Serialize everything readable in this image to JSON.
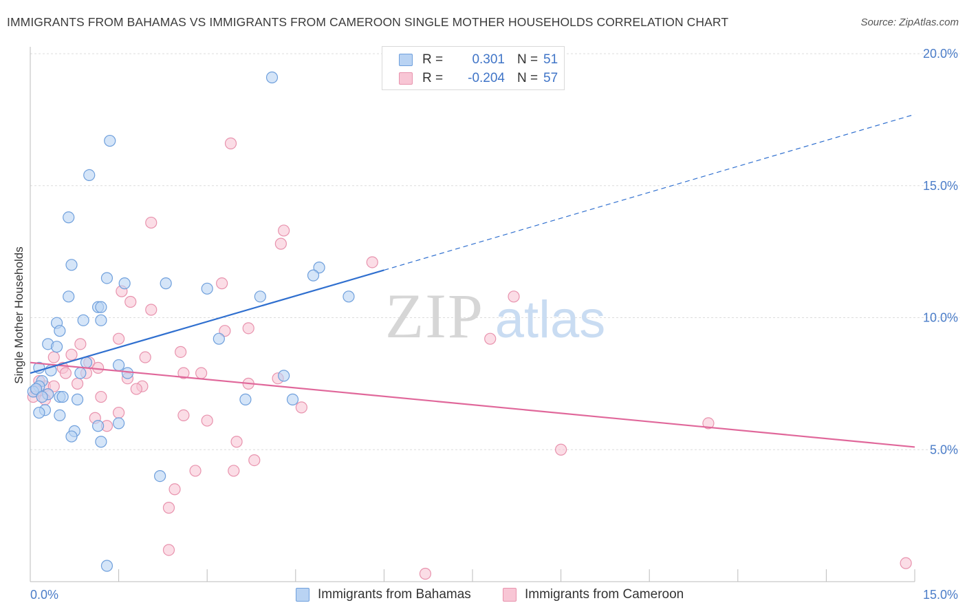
{
  "title": "IMMIGRANTS FROM BAHAMAS VS IMMIGRANTS FROM CAMEROON SINGLE MOTHER HOUSEHOLDS CORRELATION CHART",
  "source": "Source: ZipAtlas.com",
  "watermark": {
    "zip": "ZIP",
    "atlas": "atlas"
  },
  "colors": {
    "bahamas_fill": "#b9d3f3",
    "bahamas_stroke": "#6e9fdc",
    "bahamas_line": "#2f6fcf",
    "cameroon_fill": "#f8c6d5",
    "cameroon_stroke": "#e892ad",
    "cameroon_line": "#e0679a",
    "tick_text": "#4a7cc8",
    "grid": "#dcdcdc"
  },
  "legend": {
    "rows": [
      {
        "r_label": "R =",
        "r_value": "0.301",
        "n_label": "N =",
        "n_value": "51"
      },
      {
        "r_label": "R =",
        "r_value": "-0.204",
        "n_label": "N =",
        "n_value": "57"
      }
    ]
  },
  "bottom_legend": [
    "Immigrants from Bahamas",
    "Immigrants from Cameroon"
  ],
  "chart_data": {
    "type": "scatter",
    "title": "IMMIGRANTS FROM BAHAMAS VS IMMIGRANTS FROM CAMEROON SINGLE MOTHER HOUSEHOLDS CORRELATION CHART",
    "xlabel": "",
    "ylabel": "Single Mother Households",
    "xlim": [
      0,
      15
    ],
    "ylim": [
      0,
      20.5
    ],
    "x_tick_labels": [
      "0.0%",
      "15.0%"
    ],
    "y_ticks": [
      5,
      10,
      15,
      20
    ],
    "y_tick_labels": [
      "5.0%",
      "10.0%",
      "15.0%",
      "20.0%"
    ],
    "grid": true,
    "legend_position": "top-center",
    "series": [
      {
        "name": "Immigrants from Bahamas",
        "r": 0.301,
        "n": 51,
        "trend": {
          "x0": 0.0,
          "y0": 7.9,
          "x1": 6.0,
          "y1": 11.8,
          "dashed_to_x": 15.0,
          "dashed_to_y": 17.7
        },
        "points": [
          [
            4.1,
            19.1
          ],
          [
            1.35,
            16.7
          ],
          [
            1.0,
            15.4
          ],
          [
            0.65,
            13.8
          ],
          [
            0.7,
            12.0
          ],
          [
            1.3,
            11.5
          ],
          [
            1.6,
            11.3
          ],
          [
            2.3,
            11.3
          ],
          [
            3.0,
            11.1
          ],
          [
            4.9,
            11.9
          ],
          [
            4.8,
            11.6
          ],
          [
            5.4,
            10.8
          ],
          [
            3.9,
            10.8
          ],
          [
            0.65,
            10.8
          ],
          [
            1.15,
            10.4
          ],
          [
            1.2,
            10.4
          ],
          [
            1.2,
            9.9
          ],
          [
            0.9,
            9.9
          ],
          [
            0.45,
            9.8
          ],
          [
            0.5,
            9.5
          ],
          [
            3.2,
            9.2
          ],
          [
            0.3,
            9.0
          ],
          [
            0.45,
            8.9
          ],
          [
            0.95,
            8.3
          ],
          [
            1.5,
            8.2
          ],
          [
            0.15,
            8.1
          ],
          [
            0.35,
            8.0
          ],
          [
            0.85,
            7.9
          ],
          [
            1.65,
            7.9
          ],
          [
            4.3,
            7.8
          ],
          [
            0.2,
            7.6
          ],
          [
            0.15,
            7.4
          ],
          [
            0.05,
            7.2
          ],
          [
            0.3,
            7.1
          ],
          [
            0.5,
            7.0
          ],
          [
            0.55,
            7.0
          ],
          [
            0.8,
            6.9
          ],
          [
            3.65,
            6.9
          ],
          [
            4.45,
            6.9
          ],
          [
            0.25,
            6.5
          ],
          [
            0.15,
            6.4
          ],
          [
            0.5,
            6.3
          ],
          [
            1.5,
            6.0
          ],
          [
            1.15,
            5.9
          ],
          [
            0.75,
            5.7
          ],
          [
            0.7,
            5.5
          ],
          [
            1.2,
            5.3
          ],
          [
            2.2,
            4.0
          ],
          [
            1.3,
            0.6
          ],
          [
            0.1,
            7.3
          ],
          [
            0.2,
            7.0
          ]
        ]
      },
      {
        "name": "Immigrants from Cameroon",
        "r": -0.204,
        "n": 57,
        "trend": {
          "x0": 0.0,
          "y0": 8.3,
          "x1": 15.0,
          "y1": 5.1
        },
        "points": [
          [
            3.4,
            16.6
          ],
          [
            2.05,
            13.6
          ],
          [
            4.3,
            13.3
          ],
          [
            4.25,
            12.8
          ],
          [
            5.8,
            12.1
          ],
          [
            3.25,
            11.3
          ],
          [
            1.55,
            11.0
          ],
          [
            1.7,
            10.6
          ],
          [
            2.05,
            10.3
          ],
          [
            8.2,
            10.8
          ],
          [
            3.7,
            9.6
          ],
          [
            3.3,
            9.5
          ],
          [
            1.5,
            9.2
          ],
          [
            0.85,
            9.0
          ],
          [
            7.8,
            9.2
          ],
          [
            2.55,
            8.7
          ],
          [
            0.7,
            8.6
          ],
          [
            1.95,
            8.5
          ],
          [
            0.4,
            8.5
          ],
          [
            1.0,
            8.3
          ],
          [
            1.15,
            8.1
          ],
          [
            0.55,
            8.1
          ],
          [
            0.6,
            7.9
          ],
          [
            0.95,
            7.9
          ],
          [
            2.6,
            7.9
          ],
          [
            2.9,
            7.9
          ],
          [
            1.65,
            7.7
          ],
          [
            4.2,
            7.7
          ],
          [
            0.8,
            7.5
          ],
          [
            3.7,
            7.5
          ],
          [
            0.25,
            7.4
          ],
          [
            0.4,
            7.4
          ],
          [
            1.9,
            7.4
          ],
          [
            1.8,
            7.3
          ],
          [
            0.1,
            7.2
          ],
          [
            0.3,
            7.1
          ],
          [
            0.25,
            6.9
          ],
          [
            1.2,
            7.0
          ],
          [
            0.05,
            7.0
          ],
          [
            4.6,
            6.6
          ],
          [
            1.5,
            6.4
          ],
          [
            2.6,
            6.3
          ],
          [
            1.1,
            6.2
          ],
          [
            3.0,
            6.1
          ],
          [
            11.5,
            6.0
          ],
          [
            1.3,
            5.9
          ],
          [
            3.5,
            5.3
          ],
          [
            9.0,
            5.0
          ],
          [
            3.8,
            4.6
          ],
          [
            2.8,
            4.2
          ],
          [
            3.45,
            4.2
          ],
          [
            2.45,
            3.5
          ],
          [
            2.35,
            2.8
          ],
          [
            2.35,
            1.2
          ],
          [
            6.7,
            0.3
          ],
          [
            14.85,
            0.7
          ],
          [
            0.15,
            7.6
          ]
        ]
      }
    ]
  }
}
